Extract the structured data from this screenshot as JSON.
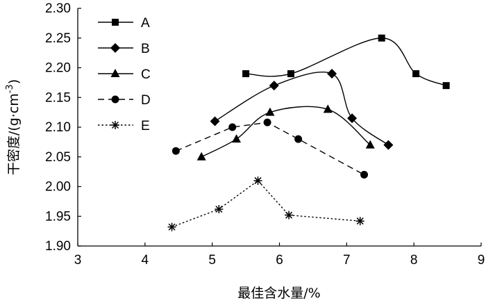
{
  "chart_data": {
    "type": "line",
    "title": "",
    "xlabel": "最佳含水量/%",
    "ylabel": "干密度/(g·cm",
    "ylabel_sup": "-3",
    "ylabel_close": ")",
    "xlim": [
      3,
      9
    ],
    "ylim": [
      1.9,
      2.3
    ],
    "x_ticks": [
      "3",
      "4",
      "5",
      "6",
      "7",
      "8",
      "9"
    ],
    "y_ticks": [
      "1.90",
      "1.95",
      "2.00",
      "2.05",
      "2.10",
      "2.15",
      "2.20",
      "2.25",
      "2.30"
    ],
    "grid": false,
    "legend_position": "top-left",
    "series": [
      {
        "name": "A",
        "marker": "square",
        "line": "solid",
        "smooth": true,
        "x": [
          5.5,
          6.17,
          7.52,
          8.03,
          8.48
        ],
        "y": [
          2.19,
          2.19,
          2.25,
          2.19,
          2.17
        ]
      },
      {
        "name": "B",
        "marker": "diamond",
        "line": "solid",
        "smooth": true,
        "x": [
          5.04,
          5.92,
          6.78,
          7.08,
          7.62
        ],
        "y": [
          2.11,
          2.17,
          2.19,
          2.115,
          2.07
        ]
      },
      {
        "name": "C",
        "marker": "triangle",
        "line": "solid",
        "smooth": true,
        "x": [
          4.84,
          5.36,
          5.86,
          6.72,
          7.35
        ],
        "y": [
          2.05,
          2.08,
          2.125,
          2.13,
          2.07
        ]
      },
      {
        "name": "D",
        "marker": "circle",
        "line": "dashed",
        "smooth": false,
        "x": [
          4.46,
          5.3,
          5.82,
          6.28,
          7.26
        ],
        "y": [
          2.06,
          2.1,
          2.108,
          2.08,
          2.02
        ]
      },
      {
        "name": "E",
        "marker": "star",
        "line": "dotted",
        "smooth": false,
        "x": [
          4.4,
          5.1,
          5.68,
          6.14,
          7.2
        ],
        "y": [
          1.932,
          1.962,
          2.01,
          1.952,
          1.942
        ]
      }
    ]
  }
}
